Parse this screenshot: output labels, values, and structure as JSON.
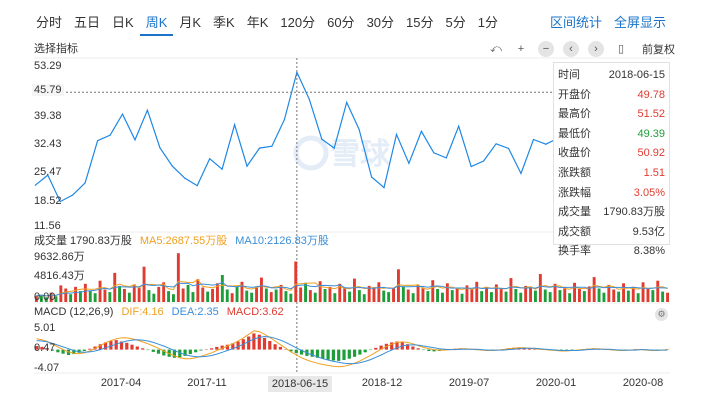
{
  "tabs": [
    "分时",
    "五日",
    "日K",
    "周K",
    "月K",
    "季K",
    "年K",
    "120分",
    "60分",
    "30分",
    "15分",
    "5分",
    "1分"
  ],
  "active_tab": "周K",
  "toolbar_right": {
    "interval_stats": "区间统计",
    "fullscreen": "全屏显示"
  },
  "indicator_label": "选择指标",
  "fuquan": "前复权",
  "icons": [
    "undo-icon",
    "zoom-in-icon",
    "zoom-out-icon",
    "prev-icon",
    "next-icon",
    "reset-icon"
  ],
  "price_axis": [
    "53.29",
    "45.79",
    "39.38",
    "32.43",
    "25.47",
    "18.52",
    "11.56"
  ],
  "ref_price": "45.79",
  "watermark": "雪球",
  "info": {
    "rows": [
      {
        "label": "时间",
        "value": "2018-06-15",
        "color": ""
      },
      {
        "label": "开盘价",
        "value": "49.78",
        "color": "red"
      },
      {
        "label": "最高价",
        "value": "51.52",
        "color": "red"
      },
      {
        "label": "最低价",
        "value": "49.39",
        "color": "green"
      },
      {
        "label": "收盘价",
        "value": "50.92",
        "color": "red"
      },
      {
        "label": "涨跌额",
        "value": "1.51",
        "color": "red"
      },
      {
        "label": "涨跌幅",
        "value": "3.05%",
        "color": "red"
      },
      {
        "label": "成交量",
        "value": "1790.83万股",
        "color": ""
      },
      {
        "label": "成交额",
        "value": "9.53亿",
        "color": ""
      },
      {
        "label": "换手率",
        "value": "8.38%",
        "color": ""
      }
    ]
  },
  "volume": {
    "label": "成交量 1790.83万股",
    "ma5": "MA5:2687.55万股",
    "ma10": "MA10:2126.83万股",
    "axis": [
      "9632.86万",
      "4816.43万",
      "0.00"
    ]
  },
  "macd": {
    "label": "MACD (12,26,9)",
    "dif": "DIF:4.16",
    "dea": "DEA:2.35",
    "macd": "MACD:3.62",
    "axis": [
      "5.01",
      "0.47",
      "-4.07"
    ]
  },
  "x_axis": [
    "2017-04",
    "2017-11",
    "2018-06-15",
    "2018-12",
    "2019-07",
    "2020-01",
    "2020-08"
  ],
  "highlight_date": "2018-06-15",
  "colors": {
    "price_line": "#1e88e5",
    "up": "#e03b30",
    "down": "#1e9e3a",
    "ma5": "#f0a020",
    "ma10": "#3a8fd8",
    "accent": "#1a73c8"
  },
  "chart_data": {
    "type": "line",
    "title": "",
    "x_range": [
      "2016-11",
      "2020-10"
    ],
    "price_range": [
      11.56,
      53.29
    ],
    "price_series": [
      [
        "2016-11-04",
        22.0
      ],
      [
        "2016-12-02",
        24.6
      ],
      [
        "2016-12-30",
        17.8
      ],
      [
        "2017-01-27",
        19.5
      ],
      [
        "2017-02-24",
        22.6
      ],
      [
        "2017-03-24",
        33.4
      ],
      [
        "2017-04-21",
        34.8
      ],
      [
        "2017-05-19",
        40.2
      ],
      [
        "2017-06-16",
        33.6
      ],
      [
        "2017-07-14",
        41.2
      ],
      [
        "2017-08-11",
        31.6
      ],
      [
        "2017-09-08",
        26.9
      ],
      [
        "2017-10-06",
        23.8
      ],
      [
        "2017-11-03",
        21.9
      ],
      [
        "2017-12-01",
        28.8
      ],
      [
        "2017-12-29",
        26.1
      ],
      [
        "2018-01-26",
        37.5
      ],
      [
        "2018-02-23",
        26.9
      ],
      [
        "2018-03-23",
        31.5
      ],
      [
        "2018-04-20",
        32.0
      ],
      [
        "2018-05-18",
        38.8
      ],
      [
        "2018-06-15",
        50.92
      ],
      [
        "2018-07-13",
        44.0
      ],
      [
        "2018-08-10",
        33.8
      ],
      [
        "2018-09-07",
        31.5
      ],
      [
        "2018-10-05",
        43.2
      ],
      [
        "2018-11-02",
        36.3
      ],
      [
        "2018-11-30",
        24.1
      ],
      [
        "2018-12-28",
        21.4
      ],
      [
        "2019-01-25",
        35.0
      ],
      [
        "2019-02-22",
        27.6
      ],
      [
        "2019-03-22",
        35.8
      ],
      [
        "2019-04-19",
        30.3
      ],
      [
        "2019-05-17",
        29.0
      ],
      [
        "2019-06-14",
        37.1
      ],
      [
        "2019-07-12",
        26.8
      ],
      [
        "2019-08-09",
        28.2
      ],
      [
        "2019-09-06",
        32.6
      ],
      [
        "2019-10-04",
        31.4
      ],
      [
        "2019-11-01",
        25.0
      ],
      [
        "2019-11-29",
        33.7
      ],
      [
        "2019-12-27",
        32.5
      ],
      [
        "2020-01-24",
        34.1
      ],
      [
        "2020-02-21",
        36.7
      ],
      [
        "2020-03-20",
        34.0
      ],
      [
        "2020-04-17",
        36.4
      ],
      [
        "2020-05-15",
        33.5
      ],
      [
        "2020-06-12",
        37.8
      ],
      [
        "2020-07-10",
        38.0
      ],
      [
        "2020-08-07",
        36.3
      ],
      [
        "2020-09-04",
        32.6
      ]
    ],
    "volume_range": [
      0,
      9632.86
    ],
    "volume_unit": "万股",
    "volume_series": [
      1200,
      1400,
      900,
      1800,
      1100,
      3200,
      2600,
      1500,
      2900,
      2100,
      3500,
      2200,
      1700,
      4100,
      2400,
      1900,
      5600,
      3100,
      2500,
      1800,
      3400,
      2700,
      6800,
      2300,
      1600,
      2900,
      3800,
      2100,
      1500,
      9400,
      2600,
      3300,
      1900,
      4400,
      2800,
      2000,
      2500,
      3600,
      5200,
      2400,
      1700,
      2900,
      3900,
      2200,
      1800,
      3000,
      4700,
      2600,
      1900,
      2400,
      3300,
      2100,
      1600,
      7800,
      2800,
      3700,
      2300,
      1800,
      4000,
      2500,
      2900,
      1700,
      3500,
      2600,
      2000,
      4500,
      2300,
      1500,
      3100,
      2700,
      3800,
      2200,
      1900,
      2600,
      6300,
      3000,
      2400,
      1700,
      3300,
      2800,
      2100,
      4200,
      2500,
      1800,
      3600,
      2300,
      2700,
      1600,
      3200,
      2400,
      3900,
      2100,
      2800,
      1900,
      3400,
      2600,
      2000,
      4600,
      2500,
      1800,
      3100,
      2700,
      2200,
      5400,
      2400,
      1900,
      3500,
      2300,
      2900,
      1700,
      3700,
      2500,
      2100,
      3000,
      4800,
      2600,
      1800,
      3300,
      2400,
      2000,
      3600,
      2200,
      2900,
      1700,
      3800,
      2500,
      2300,
      4100,
      2000,
      1790.83
    ],
    "volume_up": [
      1,
      0,
      0,
      1,
      0,
      1,
      1,
      0,
      1,
      0,
      1,
      0,
      0,
      1,
      1,
      0,
      1,
      0,
      1,
      0,
      1,
      1,
      1,
      0,
      0,
      1,
      1,
      0,
      0,
      1,
      1,
      0,
      0,
      1,
      1,
      0,
      1,
      1,
      0,
      0,
      1,
      0,
      1,
      0,
      0,
      1,
      1,
      0,
      1,
      0,
      1,
      0,
      0,
      1,
      1,
      0,
      1,
      0,
      1,
      0,
      1,
      0,
      1,
      1,
      0,
      1,
      0,
      0,
      1,
      1,
      1,
      0,
      0,
      1,
      1,
      0,
      1,
      0,
      1,
      1,
      0,
      1,
      0,
      0,
      1,
      0,
      1,
      0,
      1,
      1,
      1,
      0,
      1,
      0,
      1,
      1,
      0,
      1,
      0,
      0,
      1,
      1,
      0,
      1,
      0,
      0,
      1,
      0,
      1,
      0,
      1,
      1,
      0,
      1,
      1,
      0,
      0,
      1,
      1,
      0,
      1,
      0,
      1,
      0,
      1,
      1,
      0,
      1,
      0,
      1
    ],
    "macd_range": [
      -4.07,
      5.01
    ],
    "macd_hist": [
      0.8,
      0.6,
      0.3,
      -0.2,
      -0.6,
      -0.9,
      -1.2,
      -1.0,
      -0.7,
      -0.3,
      0.2,
      0.7,
      1.2,
      1.6,
      1.9,
      2.1,
      1.8,
      1.5,
      1.1,
      0.7,
      0.3,
      -0.1,
      -0.5,
      -0.9,
      -1.3,
      -1.6,
      -1.8,
      -1.7,
      -1.4,
      -1.0,
      -0.6,
      -0.2,
      0.1,
      0.3,
      0.6,
      0.9,
      1.1,
      1.4,
      1.8,
      2.3,
      2.9,
      3.6,
      3.3,
      2.6,
      1.9,
      1.2,
      0.6,
      0.1,
      -0.4,
      -0.8,
      -1.1,
      -1.4,
      -1.6,
      -1.8,
      -2.0,
      -2.2,
      -2.4,
      -2.5,
      -2.3,
      -2.0,
      -1.6,
      -1.1,
      -0.6,
      -0.1,
      0.4,
      0.9,
      1.3,
      1.6,
      1.8,
      1.6,
      1.2,
      0.7,
      0.3,
      -0.1,
      -0.3,
      -0.4,
      -0.3,
      -0.1,
      0.1,
      0.2,
      0.3,
      0.2,
      0.1,
      -0.1,
      -0.2,
      -0.3,
      -0.2,
      -0.1,
      0.1,
      0.3,
      0.4,
      0.5,
      0.4,
      0.3,
      0.2,
      0.1,
      0.0,
      -0.1,
      -0.2,
      -0.3,
      -0.2,
      -0.1,
      0.0,
      0.1,
      0.2,
      0.3,
      0.2,
      0.1,
      0.0,
      -0.1,
      -0.2,
      -0.1,
      0.0,
      0.1,
      0.0,
      -0.1,
      -0.2,
      -0.1,
      0.0,
      0.1
    ],
    "dif_series": [
      2.4,
      2.2,
      1.8,
      1.2,
      0.6,
      0.0,
      -0.5,
      -0.8,
      -0.9,
      -0.7,
      -0.3,
      0.3,
      0.9,
      1.5,
      2.0,
      2.4,
      2.6,
      2.6,
      2.4,
      2.1,
      1.7,
      1.3,
      0.8,
      0.3,
      -0.3,
      -0.9,
      -1.4,
      -1.8,
      -2.0,
      -2.0,
      -1.8,
      -1.5,
      -1.1,
      -0.7,
      -0.2,
      0.3,
      0.8,
      1.3,
      1.9,
      2.6,
      3.4,
      4.16,
      4.0,
      3.4,
      2.7,
      1.9,
      1.1,
      0.3,
      -0.5,
      -1.2,
      -1.8,
      -2.3,
      -2.7,
      -3.0,
      -3.3,
      -3.5,
      -3.7,
      -3.8,
      -3.7,
      -3.4,
      -3.0,
      -2.5,
      -1.9,
      -1.3,
      -0.6,
      0.1,
      0.7,
      1.2,
      1.6,
      1.7,
      1.6,
      1.3,
      0.9,
      0.5,
      0.2,
      0.0,
      -0.1,
      -0.1,
      0.0,
      0.1,
      0.2,
      0.2,
      0.1,
      0.0,
      -0.1,
      -0.2,
      -0.2,
      -0.1,
      0.0,
      0.2,
      0.3,
      0.4,
      0.4,
      0.3,
      0.2,
      0.1,
      0.0,
      -0.1,
      -0.2,
      -0.3,
      -0.3,
      -0.2,
      -0.1,
      0.0,
      0.1,
      0.2,
      0.2,
      0.1,
      0.0,
      -0.1,
      -0.2,
      -0.2,
      -0.1,
      0.0,
      0.0,
      -0.1,
      -0.2,
      -0.2,
      -0.1,
      0.0
    ],
    "dea_series": [
      2.0,
      1.9,
      1.7,
      1.4,
      1.0,
      0.6,
      0.2,
      -0.2,
      -0.5,
      -0.6,
      -0.5,
      -0.3,
      0.0,
      0.4,
      0.8,
      1.2,
      1.6,
      1.9,
      2.1,
      2.2,
      2.1,
      1.9,
      1.6,
      1.2,
      0.8,
      0.3,
      -0.2,
      -0.7,
      -1.1,
      -1.4,
      -1.6,
      -1.6,
      -1.5,
      -1.3,
      -1.0,
      -0.6,
      -0.2,
      0.2,
      0.7,
      1.2,
      1.8,
      2.35,
      2.7,
      2.9,
      2.8,
      2.5,
      2.1,
      1.6,
      1.0,
      0.4,
      -0.2,
      -0.7,
      -1.2,
      -1.6,
      -2.0,
      -2.3,
      -2.6,
      -2.8,
      -3.0,
      -3.1,
      -3.1,
      -2.9,
      -2.6,
      -2.2,
      -1.7,
      -1.2,
      -0.6,
      -0.1,
      0.4,
      0.8,
      1.0,
      1.1,
      1.0,
      0.8,
      0.6,
      0.4,
      0.2,
      0.1,
      0.0,
      0.0,
      0.1,
      0.1,
      0.1,
      0.1,
      0.0,
      -0.1,
      -0.1,
      -0.1,
      -0.1,
      0.0,
      0.1,
      0.2,
      0.3,
      0.3,
      0.3,
      0.2,
      0.1,
      0.0,
      -0.1,
      -0.2,
      -0.2,
      -0.2,
      -0.2,
      -0.1,
      0.0,
      0.1,
      0.1,
      0.1,
      0.1,
      0.0,
      -0.1,
      -0.1,
      -0.1,
      -0.1,
      0.0,
      0.0,
      -0.1,
      -0.1,
      -0.1,
      -0.1
    ],
    "macd_highlight_index": 41
  }
}
